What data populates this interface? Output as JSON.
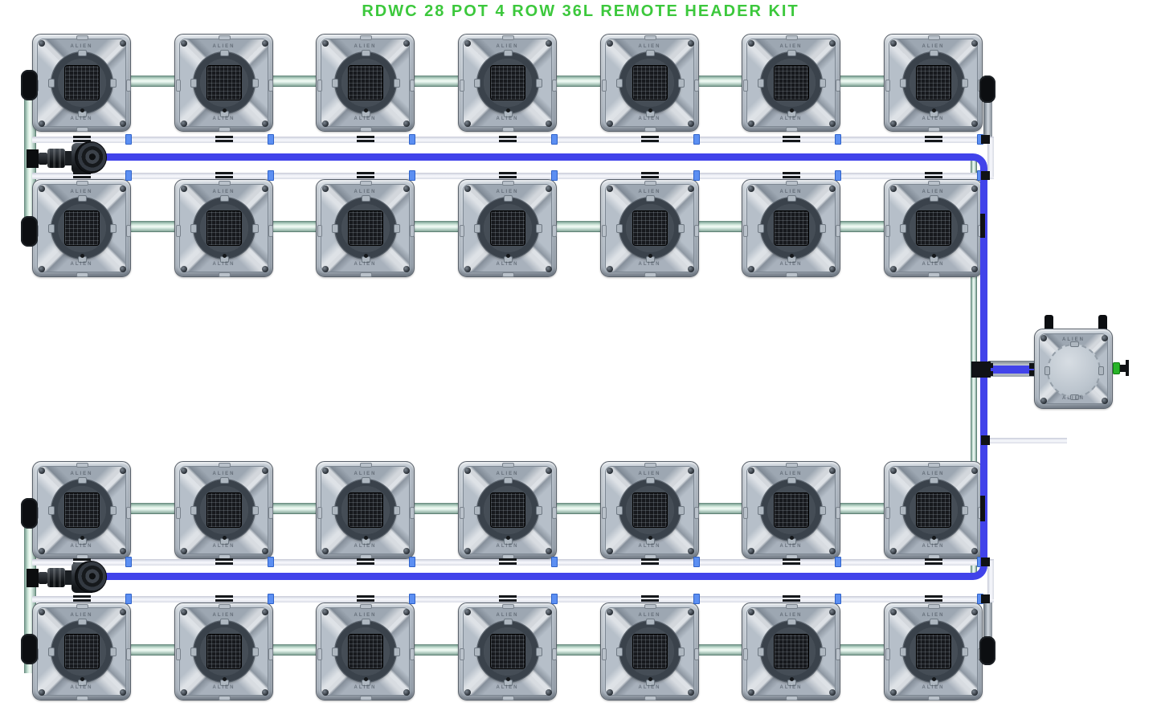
{
  "title": "RDWC 28 POT 4 ROW 36L REMOTE HEADER KIT",
  "brand_text": "ALIEN",
  "system": {
    "kit_type": "RDWC",
    "total_pots": 28,
    "rows": 4,
    "pots_per_row": 7,
    "pot_volume": "36L",
    "header": "REMOTE HEADER",
    "pump_count": 2,
    "header_tank_count": 1
  },
  "colors": {
    "title_green": "#3cc83c",
    "supply_blue": "#4143ea",
    "return_white": "#eef0f7",
    "manifold_teal": "#cde6d9",
    "pot_body_gray": "#b4bdc7",
    "hardware_black": "#101215",
    "fitting_green": "#28b428",
    "clip_blue": "#5c8ff2"
  }
}
